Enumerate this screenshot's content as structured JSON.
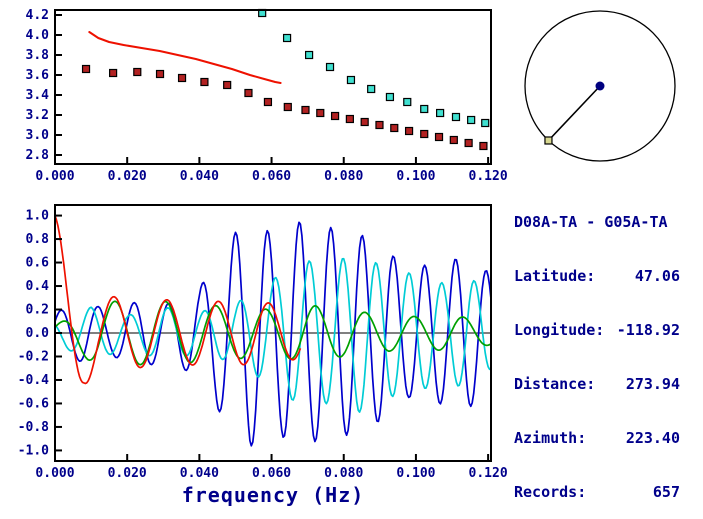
{
  "colors": {
    "text": "#00008b",
    "axis": "#000000",
    "reference_red": "#ee1100",
    "phase_squares": "#b22222",
    "group_squares": "#40e0d0",
    "wave_blue": "#0000cc",
    "wave_cyan": "#00ccd5",
    "wave_green": "#00a000",
    "wave_red": "#ee1100",
    "station_dot": "#000080",
    "pair_marker": "#d8d890"
  },
  "station_info": {
    "title": "D08A-TA - G05A-TA",
    "rows": [
      {
        "label": "Latitude:",
        "value": "47.06"
      },
      {
        "label": "Longitude:",
        "value": "-118.92"
      },
      {
        "label": "Distance:",
        "value": "273.94"
      },
      {
        "label": "Azimuth:",
        "value": "223.40"
      },
      {
        "label": "Records:",
        "value": "657"
      }
    ]
  },
  "azimuth_dial": {
    "azimuth_deg": 223.4
  },
  "chart_data": [
    {
      "id": "dispersion",
      "type": "scatter",
      "title": "",
      "xlabel": "",
      "ylabel": "",
      "grid": false,
      "legend": "none",
      "xlim": [
        0,
        0.1208
      ],
      "ylim": [
        2.71,
        4.25
      ],
      "xticks": {
        "values": [
          0.0,
          0.02,
          0.04,
          0.06,
          0.08,
          0.1,
          0.12
        ],
        "labels": [
          "0.000",
          "0.020",
          "0.040",
          "0.060",
          "0.080",
          "0.100",
          "0.120"
        ]
      },
      "yticks": {
        "values": [
          2.8,
          3.0,
          3.2,
          3.4,
          3.6,
          3.8,
          4.0,
          4.2
        ],
        "labels": [
          "2.8",
          "3.0",
          "3.2",
          "3.4",
          "3.6",
          "3.8",
          "4.0",
          "4.2"
        ]
      },
      "series": [
        {
          "name": "reference-dispersion-curve",
          "type": "line",
          "color": "#ee1100",
          "x": [
            0.0095,
            0.012,
            0.015,
            0.019,
            0.024,
            0.029,
            0.034,
            0.039,
            0.044,
            0.049,
            0.054,
            0.058,
            0.061,
            0.0625
          ],
          "y": [
            4.03,
            3.97,
            3.93,
            3.9,
            3.87,
            3.84,
            3.8,
            3.76,
            3.71,
            3.66,
            3.6,
            3.56,
            3.53,
            3.52
          ]
        },
        {
          "name": "phase-velocity-picks",
          "type": "squares",
          "color": "#b22222",
          "x": [
            0.0086,
            0.0161,
            0.0228,
            0.0291,
            0.0352,
            0.0414,
            0.0477,
            0.0536,
            0.059,
            0.0645,
            0.0694,
            0.0735,
            0.0776,
            0.0817,
            0.0858,
            0.0899,
            0.094,
            0.0981,
            0.1023,
            0.1064,
            0.1105,
            0.1146,
            0.1187
          ],
          "y": [
            3.66,
            3.62,
            3.63,
            3.61,
            3.57,
            3.53,
            3.5,
            3.42,
            3.33,
            3.28,
            3.25,
            3.22,
            3.19,
            3.16,
            3.13,
            3.1,
            3.07,
            3.04,
            3.01,
            2.98,
            2.95,
            2.92,
            2.89
          ]
        },
        {
          "name": "group-velocity-picks",
          "type": "squares",
          "color": "#40e0d0",
          "x": [
            0.0574,
            0.0643,
            0.0704,
            0.0762,
            0.082,
            0.0876,
            0.0928,
            0.0976,
            0.1023,
            0.1067,
            0.1111,
            0.1153,
            0.1192
          ],
          "y": [
            4.22,
            3.97,
            3.8,
            3.68,
            3.55,
            3.46,
            3.38,
            3.33,
            3.26,
            3.22,
            3.18,
            3.15,
            3.12
          ]
        }
      ]
    },
    {
      "id": "spectrum",
      "type": "line",
      "title": "",
      "xlabel": "frequency (Hz)",
      "ylabel": "",
      "grid": false,
      "legend": "none",
      "zero_line": true,
      "xlim": [
        0,
        0.1208
      ],
      "ylim": [
        -1.09,
        1.09
      ],
      "xticks": {
        "values": [
          0.0,
          0.02,
          0.04,
          0.06,
          0.08,
          0.1,
          0.12
        ],
        "labels": [
          "0.000",
          "0.020",
          "0.040",
          "0.060",
          "0.080",
          "0.100",
          "0.120"
        ]
      },
      "yticks": {
        "values": [
          -1.0,
          -0.8,
          -0.6,
          -0.4,
          -0.2,
          0.0,
          0.2,
          0.4,
          0.6,
          0.8,
          1.0
        ],
        "labels": [
          "-1.0",
          "-0.8",
          "-0.6",
          "-0.4",
          "-0.2",
          "0.0",
          "0.2",
          "0.4",
          "0.6",
          "0.8",
          "1.0"
        ]
      },
      "series": [
        {
          "name": "observed-cross-spectrum-blue",
          "type": "wave",
          "color": "#0000cc",
          "x_start": 0,
          "x_end": 0.1208,
          "phase0": -1.0,
          "envelope": [
            [
              0,
              0.18
            ],
            [
              0.008,
              0.25
            ],
            [
              0.016,
              0.2
            ],
            [
              0.024,
              0.28
            ],
            [
              0.032,
              0.25
            ],
            [
              0.04,
              0.38
            ],
            [
              0.048,
              0.8
            ],
            [
              0.054,
              0.97
            ],
            [
              0.06,
              0.85
            ],
            [
              0.068,
              0.95
            ],
            [
              0.076,
              0.9
            ],
            [
              0.084,
              0.85
            ],
            [
              0.09,
              0.75
            ],
            [
              0.098,
              0.55
            ],
            [
              0.106,
              0.6
            ],
            [
              0.114,
              0.65
            ],
            [
              0.121,
              0.5
            ]
          ],
          "period": [
            [
              0,
              0.0105
            ],
            [
              0.03,
              0.0095
            ],
            [
              0.06,
              0.0088
            ],
            [
              0.121,
              0.0085
            ]
          ]
        },
        {
          "name": "smoothed-cross-spectrum-cyan",
          "type": "wave",
          "color": "#00ccd5",
          "x_start": 0,
          "x_end": 0.1208,
          "phase0": 0.8,
          "envelope": [
            [
              0,
              0.1
            ],
            [
              0.01,
              0.22
            ],
            [
              0.02,
              0.15
            ],
            [
              0.03,
              0.22
            ],
            [
              0.04,
              0.18
            ],
            [
              0.05,
              0.25
            ],
            [
              0.06,
              0.45
            ],
            [
              0.068,
              0.62
            ],
            [
              0.076,
              0.6
            ],
            [
              0.084,
              0.68
            ],
            [
              0.092,
              0.55
            ],
            [
              0.1,
              0.5
            ],
            [
              0.108,
              0.42
            ],
            [
              0.115,
              0.48
            ],
            [
              0.121,
              0.3
            ]
          ],
          "period": [
            [
              0,
              0.0115
            ],
            [
              0.04,
              0.01
            ],
            [
              0.08,
              0.0092
            ],
            [
              0.121,
              0.009
            ]
          ]
        },
        {
          "name": "bessel-fit-green",
          "type": "wave",
          "color": "#00a000",
          "x_start": 0,
          "x_end": 0.1208,
          "phase0": -0.6,
          "envelope": [
            [
              0,
              0.06
            ],
            [
              0.006,
              0.18
            ],
            [
              0.012,
              0.27
            ],
            [
              0.03,
              0.27
            ],
            [
              0.05,
              0.22
            ],
            [
              0.06,
              0.2
            ],
            [
              0.07,
              0.24
            ],
            [
              0.08,
              0.2
            ],
            [
              0.09,
              0.16
            ],
            [
              0.1,
              0.14
            ],
            [
              0.11,
              0.15
            ],
            [
              0.121,
              0.1
            ]
          ],
          "period": [
            [
              0,
              0.016
            ],
            [
              0.02,
              0.014
            ],
            [
              0.121,
              0.0135
            ]
          ]
        },
        {
          "name": "reference-bessel-red",
          "type": "wave",
          "color": "#ee1100",
          "x_start": 0,
          "x_end": 0.068,
          "phase0": 0,
          "envelope": [
            [
              0,
              1.0
            ],
            [
              0.004,
              0.72
            ],
            [
              0.008,
              0.45
            ],
            [
              0.012,
              0.32
            ],
            [
              0.02,
              0.3
            ],
            [
              0.04,
              0.27
            ],
            [
              0.056,
              0.27
            ],
            [
              0.068,
              0.22
            ]
          ],
          "period": [
            [
              0,
              0.02
            ],
            [
              0.01,
              0.015
            ],
            [
              0.068,
              0.0135
            ]
          ]
        }
      ]
    }
  ]
}
